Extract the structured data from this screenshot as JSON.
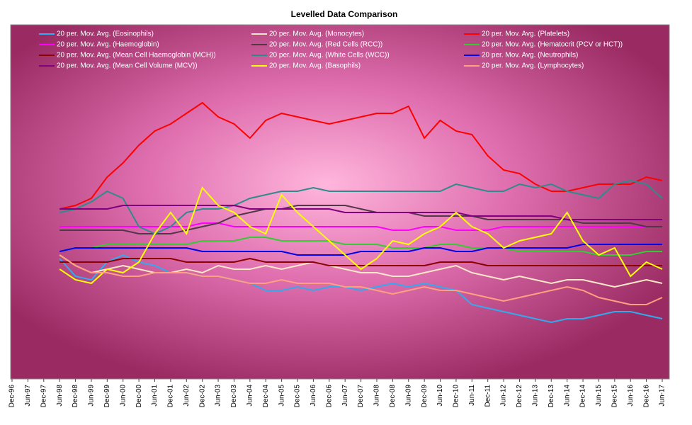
{
  "chart_data": {
    "type": "line",
    "title": "Levelled Data Comparison",
    "categories": [
      "Dec-96",
      "Jun-97",
      "Dec-97",
      "Jun-98",
      "Dec-98",
      "Jun-99",
      "Dec-99",
      "Jun-00",
      "Dec-00",
      "Jun-01",
      "Dec-01",
      "Jun-02",
      "Dec-02",
      "Jun-03",
      "Dec-03",
      "Jun-04",
      "Dec-04",
      "Jun-05",
      "Dec-05",
      "Jun-06",
      "Dec-06",
      "Jun-07",
      "Dec-07",
      "Jun-08",
      "Dec-08",
      "Jun-09",
      "Dec-09",
      "Jun-10",
      "Dec-10",
      "Jun-11",
      "Dec-11",
      "Jun-12",
      "Dec-12",
      "Jun-13",
      "Dec-13",
      "Jun-14",
      "Dec-14",
      "Jun-15",
      "Dec-15",
      "Jun-16",
      "Dec-16",
      "Jun-17"
    ],
    "ylim": [
      0,
      100
    ],
    "series": [
      {
        "name": "20 per. Mov. Avg. (Eosinophils)",
        "color": "#33aaee",
        "values": [
          null,
          null,
          null,
          34,
          29,
          28,
          33,
          35,
          33,
          32,
          30,
          30,
          29,
          29,
          28,
          27,
          25,
          25,
          26,
          25,
          26,
          26,
          25,
          26,
          27,
          26,
          27,
          26,
          25,
          21,
          20,
          19,
          18,
          17,
          16,
          17,
          17,
          18,
          19,
          19,
          18,
          17
        ]
      },
      {
        "name": "20 per. Mov. Avg. (Monocytes)",
        "color": "#ffe8c8",
        "values": [
          null,
          null,
          null,
          35,
          32,
          30,
          31,
          32,
          31,
          30,
          30,
          31,
          30,
          32,
          31,
          31,
          32,
          31,
          32,
          33,
          32,
          31,
          30,
          30,
          29,
          29,
          30,
          31,
          32,
          30,
          29,
          28,
          29,
          28,
          27,
          28,
          28,
          27,
          26,
          27,
          28,
          27
        ]
      },
      {
        "name": "20 per. Mov. Avg. (Platelets)",
        "color": "#ff0000",
        "values": [
          null,
          null,
          null,
          48,
          49,
          51,
          57,
          61,
          66,
          70,
          72,
          75,
          78,
          74,
          72,
          68,
          73,
          75,
          74,
          73,
          72,
          73,
          74,
          75,
          75,
          77,
          68,
          73,
          70,
          69,
          63,
          59,
          58,
          55,
          53,
          53,
          54,
          55,
          55,
          55,
          57,
          56
        ]
      },
      {
        "name": "20 per. Mov. Avg. (Haemoglobin)",
        "color": "#ff00ff",
        "values": [
          null,
          null,
          null,
          43,
          43,
          43,
          43,
          43,
          43,
          43,
          43,
          43,
          44,
          44,
          43,
          43,
          43,
          43,
          43,
          43,
          43,
          43,
          43,
          43,
          42,
          42,
          43,
          43,
          42,
          42,
          42,
          43,
          43,
          43,
          43,
          43,
          43,
          43,
          43,
          43,
          43,
          43
        ]
      },
      {
        "name": "20 per. Mov. Avg. (Red Cells (RCC))",
        "color": "#503848",
        "values": [
          null,
          null,
          null,
          42,
          42,
          42,
          42,
          42,
          41,
          41,
          41,
          42,
          43,
          44,
          46,
          47,
          48,
          48,
          49,
          49,
          49,
          49,
          48,
          47,
          47,
          47,
          46,
          46,
          46,
          46,
          45,
          45,
          45,
          45,
          45,
          45,
          44,
          44,
          44,
          44,
          43,
          43
        ]
      },
      {
        "name": "20 per. Mov. Avg. (Hematocrit (PCV or HCT))",
        "color": "#33cc33",
        "values": [
          null,
          null,
          null,
          36,
          37,
          37,
          38,
          38,
          38,
          38,
          38,
          38,
          39,
          39,
          39,
          40,
          40,
          39,
          39,
          39,
          39,
          38,
          38,
          38,
          37,
          37,
          37,
          38,
          38,
          37,
          37,
          37,
          36,
          36,
          36,
          36,
          36,
          35,
          35,
          35,
          36,
          36
        ]
      },
      {
        "name": "20 per. Mov. Avg. (Mean Cell Haemoglobin (MCH))",
        "color": "#8b0000",
        "values": [
          null,
          null,
          null,
          33,
          33,
          33,
          33,
          34,
          34,
          34,
          34,
          33,
          33,
          33,
          33,
          34,
          33,
          33,
          33,
          33,
          32,
          32,
          32,
          32,
          32,
          32,
          32,
          33,
          33,
          33,
          32,
          32,
          32,
          32,
          32,
          32,
          32,
          32,
          32,
          32,
          32,
          32
        ]
      },
      {
        "name": "20 per. Mov. Avg. (White Cells (WCC))",
        "color": "#2e8b8b",
        "values": [
          null,
          null,
          null,
          47,
          48,
          50,
          53,
          51,
          43,
          41,
          43,
          47,
          48,
          48,
          49,
          51,
          52,
          53,
          53,
          54,
          53,
          53,
          53,
          53,
          53,
          53,
          53,
          53,
          55,
          54,
          53,
          53,
          55,
          54,
          55,
          53,
          52,
          51,
          55,
          56,
          55,
          51
        ]
      },
      {
        "name": "20 per. Mov. Avg. (Neutrophils)",
        "color": "#0000ee",
        "values": [
          null,
          null,
          null,
          36,
          37,
          37,
          37,
          37,
          37,
          37,
          37,
          37,
          36,
          36,
          36,
          36,
          36,
          36,
          35,
          35,
          35,
          35,
          36,
          36,
          36,
          36,
          37,
          37,
          36,
          36,
          37,
          37,
          37,
          37,
          37,
          37,
          38,
          38,
          38,
          38,
          38,
          38
        ]
      },
      {
        "name": "20 per. Mov. Avg. (Mean Cell Volume (MCV))",
        "color": "#800080",
        "values": [
          null,
          null,
          null,
          48,
          48,
          48,
          48,
          49,
          49,
          49,
          49,
          49,
          49,
          49,
          49,
          48,
          48,
          48,
          48,
          48,
          48,
          47,
          47,
          47,
          47,
          47,
          47,
          47,
          47,
          46,
          46,
          46,
          46,
          46,
          46,
          45,
          45,
          45,
          45,
          45,
          45,
          45
        ]
      },
      {
        "name": "20 per. Mov. Avg. (Basophils)",
        "color": "#ffff00",
        "values": [
          null,
          null,
          null,
          31,
          28,
          27,
          31,
          30,
          33,
          41,
          47,
          41,
          54,
          49,
          47,
          43,
          41,
          52,
          47,
          43,
          39,
          35,
          31,
          34,
          39,
          38,
          41,
          43,
          47,
          43,
          41,
          37,
          39,
          40,
          41,
          47,
          39,
          35,
          37,
          29,
          33,
          31
        ]
      },
      {
        "name": "20 per. Mov. Avg. (Lymphocytes)",
        "color": "#ffa080",
        "values": [
          null,
          null,
          null,
          35,
          32,
          30,
          30,
          29,
          29,
          30,
          30,
          30,
          29,
          29,
          28,
          27,
          27,
          28,
          27,
          27,
          27,
          26,
          26,
          25,
          24,
          25,
          26,
          25,
          25,
          24,
          23,
          22,
          23,
          24,
          25,
          26,
          25,
          23,
          22,
          21,
          21,
          23
        ]
      }
    ]
  }
}
